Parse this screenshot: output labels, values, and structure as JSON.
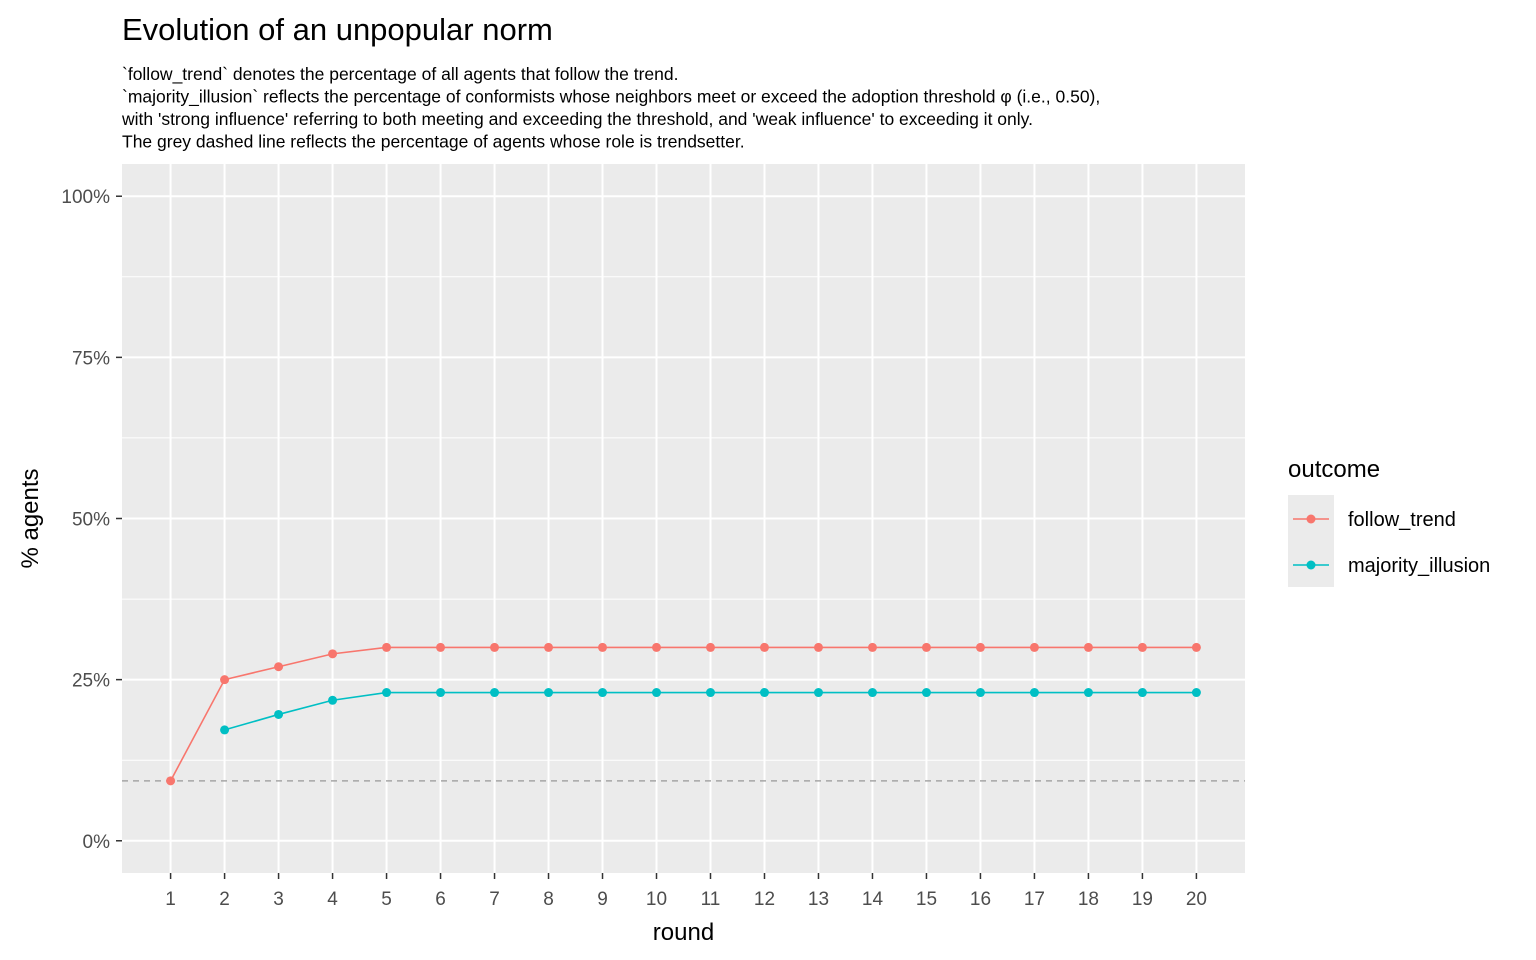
{
  "chart_data": {
    "type": "line",
    "title": "Evolution of an unpopular norm",
    "subtitle_lines": [
      "`follow_trend` denotes the percentage of all agents that follow the trend.",
      "`majority_illusion` reflects the percentage of conformists whose neighbors meet or exceed the adoption threshold φ (i.e., 0.50),",
      "with 'strong influence' referring to both meeting and exceeding the threshold, and 'weak influence' to exceeding it only.",
      "The grey dashed line reflects the percentage of agents whose role is trendsetter."
    ],
    "xlabel": "round",
    "ylabel": "% agents",
    "x": [
      1,
      2,
      3,
      4,
      5,
      6,
      7,
      8,
      9,
      10,
      11,
      12,
      13,
      14,
      15,
      16,
      17,
      18,
      19,
      20
    ],
    "x_tick_labels": [
      "1",
      "2",
      "3",
      "4",
      "5",
      "6",
      "7",
      "8",
      "9",
      "10",
      "11",
      "12",
      "13",
      "14",
      "15",
      "16",
      "17",
      "18",
      "19",
      "20"
    ],
    "xlim": [
      0.1,
      20.9
    ],
    "ylim": [
      -0.05,
      1.05
    ],
    "y_ticks": [
      0,
      0.25,
      0.5,
      0.75,
      1.0
    ],
    "y_tick_labels": [
      "0%",
      "25%",
      "50%",
      "75%",
      "100%"
    ],
    "grid": true,
    "legend_title": "outcome",
    "legend_position": "right",
    "series": [
      {
        "name": "follow_trend",
        "color": "#F8766D",
        "values": [
          0.093,
          0.25,
          0.27,
          0.29,
          0.3,
          0.3,
          0.3,
          0.3,
          0.3,
          0.3,
          0.3,
          0.3,
          0.3,
          0.3,
          0.3,
          0.3,
          0.3,
          0.3,
          0.3,
          0.3
        ]
      },
      {
        "name": "majority_illusion",
        "color": "#00BFC4",
        "values": [
          null,
          0.172,
          0.196,
          0.218,
          0.23,
          0.23,
          0.23,
          0.23,
          0.23,
          0.23,
          0.23,
          0.23,
          0.23,
          0.23,
          0.23,
          0.23,
          0.23,
          0.23,
          0.23,
          0.23
        ]
      }
    ],
    "reference_line": {
      "y": 0.093,
      "color": "#a6a6a6",
      "style": "dashed"
    },
    "panel_background": "#EBEBEB",
    "grid_color": "#FFFFFF"
  }
}
